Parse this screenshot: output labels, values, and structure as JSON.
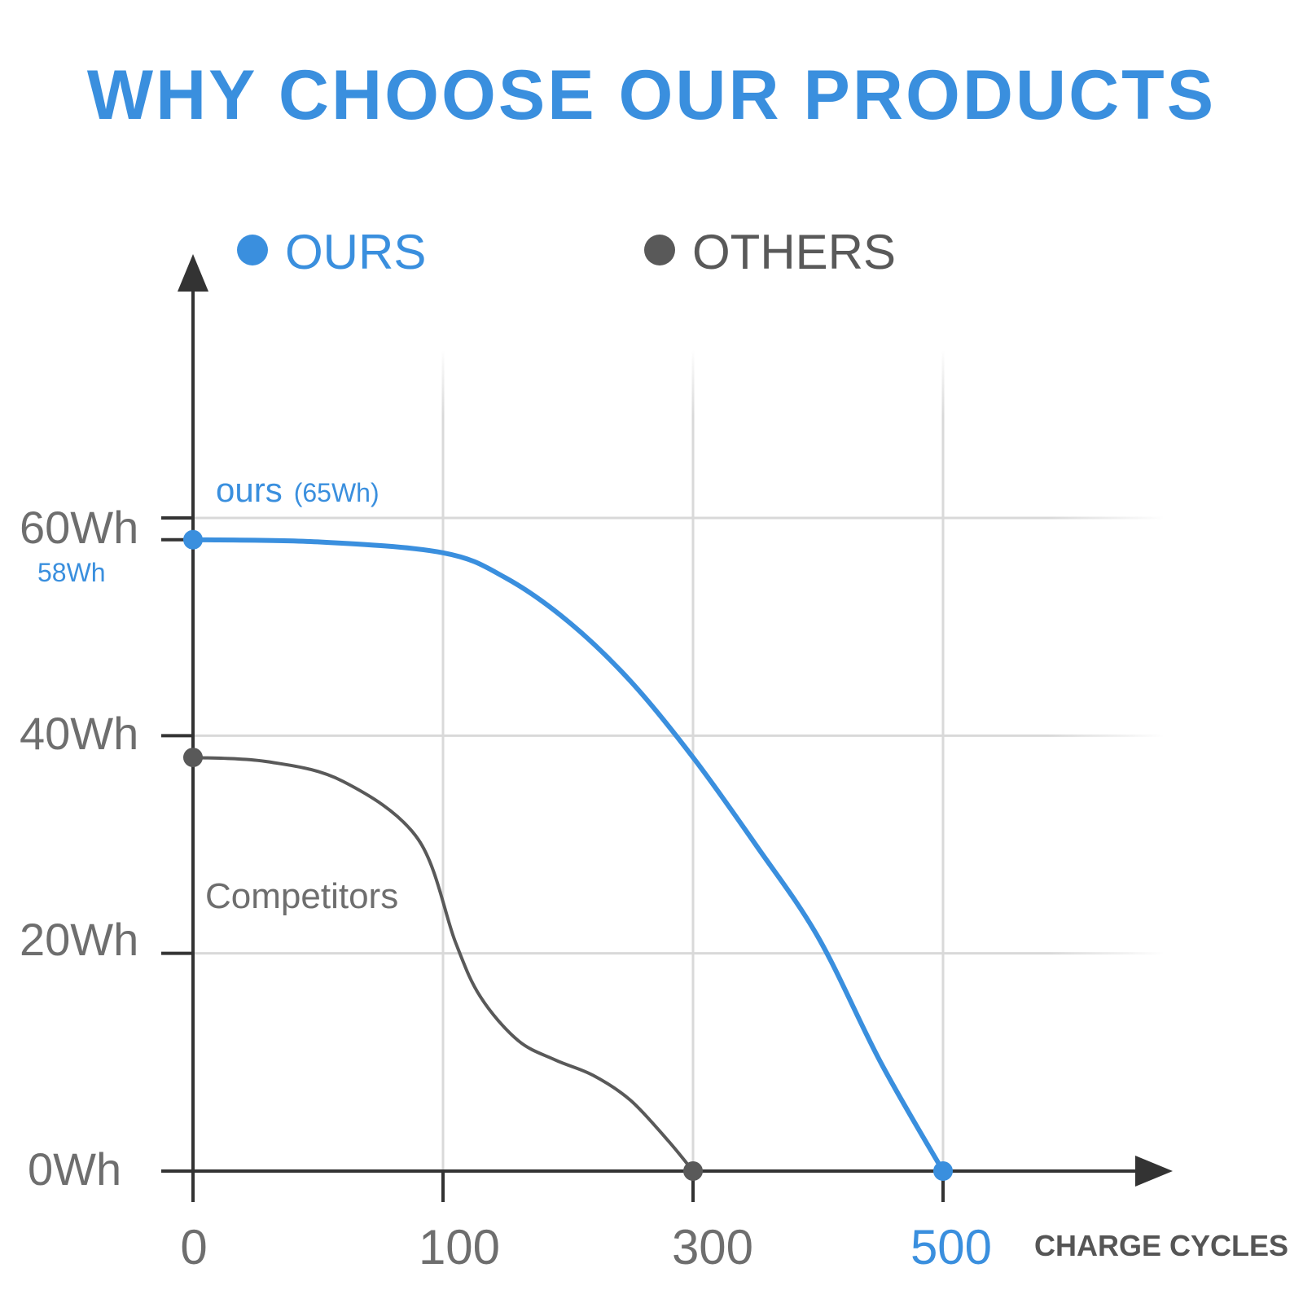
{
  "colors": {
    "ours": "#3a8fde",
    "others": "#595959",
    "axis": "#333333",
    "grid": "#d9d9d9",
    "tick_text": "#6e6e6e"
  },
  "chart_data": {
    "type": "line",
    "title": "WHY CHOOSE OUR PRODUCTS",
    "xlabel": "CHARGE CYCLES",
    "ylabel": "",
    "x_ticks": [
      "0",
      "100",
      "300",
      "500"
    ],
    "y_ticks": [
      "0Wh",
      "20Wh",
      "40Wh",
      "60Wh"
    ],
    "grid": true,
    "legend_position": "top",
    "legend": [
      "OURS",
      "OTHERS"
    ],
    "series": [
      {
        "name": "OURS",
        "label": "ours",
        "label_sub": "(65Wh)",
        "start_label": "58Wh",
        "end_label": "500",
        "points": [
          [
            0,
            58
          ],
          [
            50,
            57.8
          ],
          [
            100,
            56.8
          ],
          [
            150,
            54.5
          ],
          [
            200,
            50.5
          ],
          [
            250,
            45
          ],
          [
            300,
            38
          ],
          [
            350,
            30
          ],
          [
            400,
            21.5
          ],
          [
            450,
            10
          ],
          [
            500,
            0
          ]
        ]
      },
      {
        "name": "OTHERS",
        "label": "Competitors",
        "points": [
          [
            0,
            38
          ],
          [
            30,
            37.6
          ],
          [
            60,
            35.8
          ],
          [
            90,
            30.5
          ],
          [
            110,
            21
          ],
          [
            130,
            16
          ],
          [
            160,
            12
          ],
          [
            190,
            10.2
          ],
          [
            220,
            8.8
          ],
          [
            250,
            6.5
          ],
          [
            280,
            2.8
          ],
          [
            300,
            0
          ]
        ]
      }
    ]
  }
}
